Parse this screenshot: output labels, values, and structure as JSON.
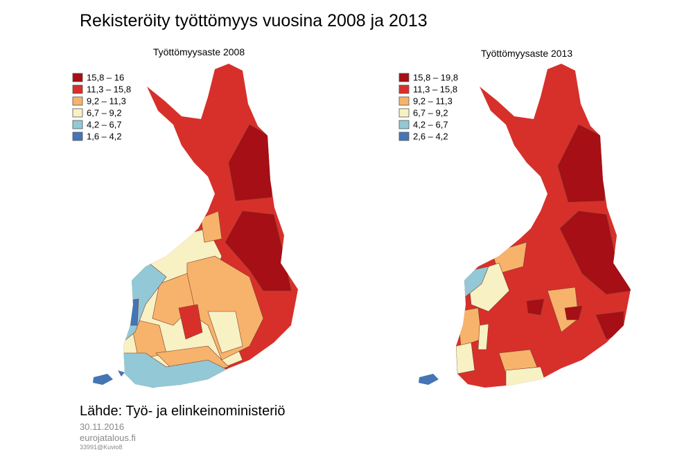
{
  "title": "Rekisteröity työttömyys vuosina 2008 ja 2013",
  "maps": [
    {
      "title": "Työttömyysaste 2008",
      "legend": [
        "15,8 – 16",
        "11,3 – 15,8",
        "9,2 – 11,3",
        "6,7 – 9,2",
        "4,2 – 6,7",
        "1,6 – 4,2"
      ]
    },
    {
      "title": "Työttömyysaste 2013",
      "legend": [
        "15,8 – 19,8",
        "11,3 – 15,8",
        "9,2 – 11,3",
        "6,7 – 9,2",
        "4,2 – 6,7",
        "2,6 – 4,2"
      ]
    }
  ],
  "source": "Lähde: Työ- ja elinkeinoministeriö",
  "date": "30.11.2016",
  "site": "eurojatalous.fi",
  "code": "33991@Kuvio8"
}
